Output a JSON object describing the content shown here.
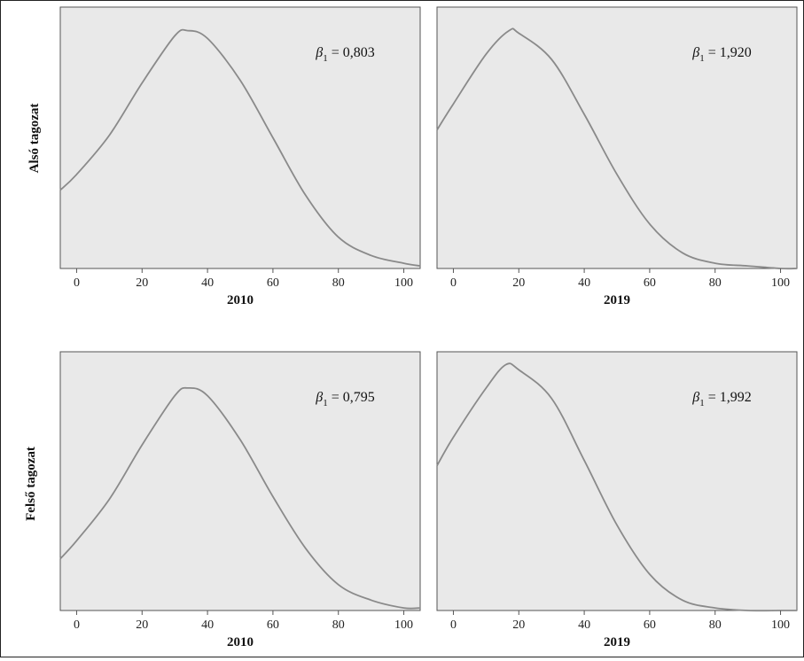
{
  "figure": {
    "row_labels": [
      "Alsó tagozat",
      "Felső tagozat"
    ],
    "colors": {
      "panel_bg": "#e9e9e9",
      "curve": "#8a8a8a",
      "axis": "#555555"
    }
  },
  "chart_data": [
    {
      "type": "line",
      "row": "Alsó tagozat",
      "xlabel": "2010",
      "xlim": [
        -5,
        105
      ],
      "xticks": [
        0,
        20,
        40,
        60,
        80,
        100
      ],
      "annotation": {
        "symbol": "β",
        "subscript": "1",
        "text": " = 0,803"
      },
      "series": [
        {
          "x": [
            -5,
            0,
            10,
            20,
            30,
            34,
            40,
            50,
            60,
            70,
            80,
            90,
            100,
            105
          ],
          "y": [
            0.3,
            0.36,
            0.51,
            0.71,
            0.89,
            0.91,
            0.88,
            0.72,
            0.5,
            0.28,
            0.12,
            0.05,
            0.02,
            0.01
          ]
        }
      ]
    },
    {
      "type": "line",
      "row": "Alsó tagozat",
      "xlabel": "2019",
      "xlim": [
        -5,
        105
      ],
      "xticks": [
        0,
        20,
        40,
        60,
        80,
        100
      ],
      "annotation": {
        "symbol": "β",
        "subscript": "1",
        "text": " = 1,920"
      },
      "series": [
        {
          "x": [
            -5,
            0,
            10,
            17,
            20,
            30,
            40,
            50,
            60,
            70,
            80,
            90,
            100,
            105
          ],
          "y": [
            0.53,
            0.63,
            0.82,
            0.91,
            0.9,
            0.8,
            0.59,
            0.36,
            0.17,
            0.06,
            0.02,
            0.01,
            0.0,
            0.0
          ]
        }
      ]
    },
    {
      "type": "line",
      "row": "Felső tagozat",
      "xlabel": "2010",
      "xlim": [
        -5,
        105
      ],
      "xticks": [
        0,
        20,
        40,
        60,
        80,
        100
      ],
      "annotation": {
        "symbol": "β",
        "subscript": "1",
        "text": " = 0,795"
      },
      "series": [
        {
          "x": [
            -5,
            0,
            10,
            20,
            30,
            34,
            40,
            50,
            60,
            70,
            80,
            90,
            100,
            105
          ],
          "y": [
            0.2,
            0.27,
            0.43,
            0.64,
            0.83,
            0.86,
            0.83,
            0.66,
            0.44,
            0.24,
            0.1,
            0.04,
            0.01,
            0.01
          ]
        }
      ]
    },
    {
      "type": "line",
      "row": "Felső tagozat",
      "xlabel": "2019",
      "xlim": [
        -5,
        105
      ],
      "xticks": [
        0,
        20,
        40,
        60,
        80,
        100
      ],
      "annotation": {
        "symbol": "β",
        "subscript": "1",
        "text": " = 1,992"
      },
      "series": [
        {
          "x": [
            -5,
            0,
            10,
            16,
            20,
            30,
            40,
            50,
            60,
            70,
            80,
            90,
            100,
            105
          ],
          "y": [
            0.56,
            0.67,
            0.86,
            0.95,
            0.93,
            0.82,
            0.58,
            0.33,
            0.14,
            0.04,
            0.01,
            0.0,
            0.0,
            0.0
          ]
        }
      ]
    }
  ]
}
